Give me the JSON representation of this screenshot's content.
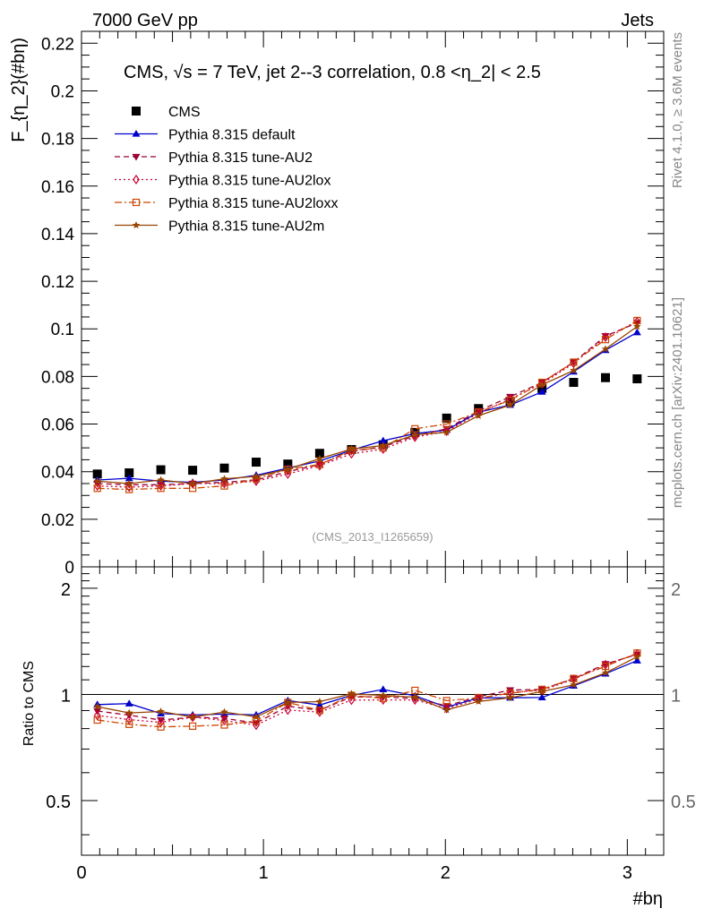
{
  "header": {
    "left_label": "7000 GeV pp",
    "right_label": "Jets"
  },
  "side_labels": {
    "rivet": "Rivet 4.1.0, ≥ 3.6M events",
    "mcplots": "mcplots.cern.ch [arXiv:2401.10621]"
  },
  "chart_data": {
    "type": "line",
    "title": "CMS, √s = 7 TeV, jet 2--3 correlation, 0.8 <η_2| < 2.5",
    "watermark": "(CMS_2013_I1265659)",
    "xlabel": "#bη",
    "ylabel": "F_{η_2}(#bη)",
    "ratio_ylabel": "Ratio to CMS",
    "xlim": [
      0,
      3.2
    ],
    "ylim": [
      0,
      0.225
    ],
    "ratio_ylim": [
      0.35,
      2.3
    ],
    "x_ticks": [
      "0",
      "1",
      "2",
      "3"
    ],
    "y_ticks": [
      "0",
      "0.02",
      "0.04",
      "0.06",
      "0.08",
      "0.1",
      "0.12",
      "0.14",
      "0.16",
      "0.18",
      "0.2",
      "0.22"
    ],
    "ratio_ticks_left": [
      "0.5",
      "1",
      "2"
    ],
    "ratio_ticks_right": [
      "0.5",
      "1",
      "2"
    ],
    "x": [
      0.087,
      0.262,
      0.436,
      0.611,
      0.785,
      0.96,
      1.134,
      1.309,
      1.484,
      1.658,
      1.833,
      2.007,
      2.182,
      2.356,
      2.531,
      2.705,
      2.88,
      3.054
    ],
    "series": [
      {
        "name": "CMS",
        "values": [
          0.039,
          0.0395,
          0.0408,
          0.0406,
          0.0415,
          0.044,
          0.0432,
          0.0477,
          0.0493,
          0.0513,
          0.0565,
          0.0625,
          0.0665,
          0.0695,
          0.075,
          0.0775,
          0.0795,
          0.079
        ]
      },
      {
        "name": "Pythia 8.315 default",
        "values": [
          0.0365,
          0.0372,
          0.036,
          0.0355,
          0.0365,
          0.0385,
          0.0415,
          0.0445,
          0.049,
          0.053,
          0.056,
          0.0575,
          0.065,
          0.068,
          0.0735,
          0.082,
          0.091,
          0.0985
        ]
      },
      {
        "name": "Pythia 8.315 tune-AU2",
        "values": [
          0.035,
          0.0345,
          0.0345,
          0.035,
          0.0355,
          0.0365,
          0.04,
          0.043,
          0.0485,
          0.0505,
          0.055,
          0.058,
          0.0655,
          0.0715,
          0.0775,
          0.086,
          0.097,
          0.1025
        ]
      },
      {
        "name": "Pythia 8.315 tune-AU2lox",
        "values": [
          0.034,
          0.0335,
          0.034,
          0.035,
          0.035,
          0.036,
          0.039,
          0.0425,
          0.0475,
          0.0495,
          0.0545,
          0.057,
          0.0645,
          0.0705,
          0.077,
          0.0855,
          0.0965,
          0.103
        ]
      },
      {
        "name": "Pythia 8.315 tune-AU2loxx",
        "values": [
          0.033,
          0.0325,
          0.033,
          0.033,
          0.034,
          0.037,
          0.041,
          0.043,
          0.049,
          0.05,
          0.058,
          0.06,
          0.065,
          0.07,
          0.0775,
          0.086,
          0.0955,
          0.1035
        ]
      },
      {
        "name": "Pythia 8.315 tune-AU2m",
        "values": [
          0.036,
          0.035,
          0.0365,
          0.035,
          0.037,
          0.038,
          0.041,
          0.0455,
          0.0495,
          0.051,
          0.0555,
          0.0565,
          0.0635,
          0.068,
          0.0765,
          0.0825,
          0.0915,
          0.101
        ]
      }
    ],
    "styles": [
      {
        "color": "#000000",
        "marker": "square-filled",
        "line": "none"
      },
      {
        "color": "#0000cc",
        "marker": "triangle-up-filled",
        "line": "solid"
      },
      {
        "color": "#990033",
        "marker": "triangle-down-filled",
        "line": "dashed"
      },
      {
        "color": "#cc0033",
        "marker": "diamond-open",
        "line": "dotted"
      },
      {
        "color": "#cc4400",
        "marker": "square-open",
        "line": "dashdot"
      },
      {
        "color": "#994400",
        "marker": "star-filled",
        "line": "solid"
      }
    ]
  }
}
